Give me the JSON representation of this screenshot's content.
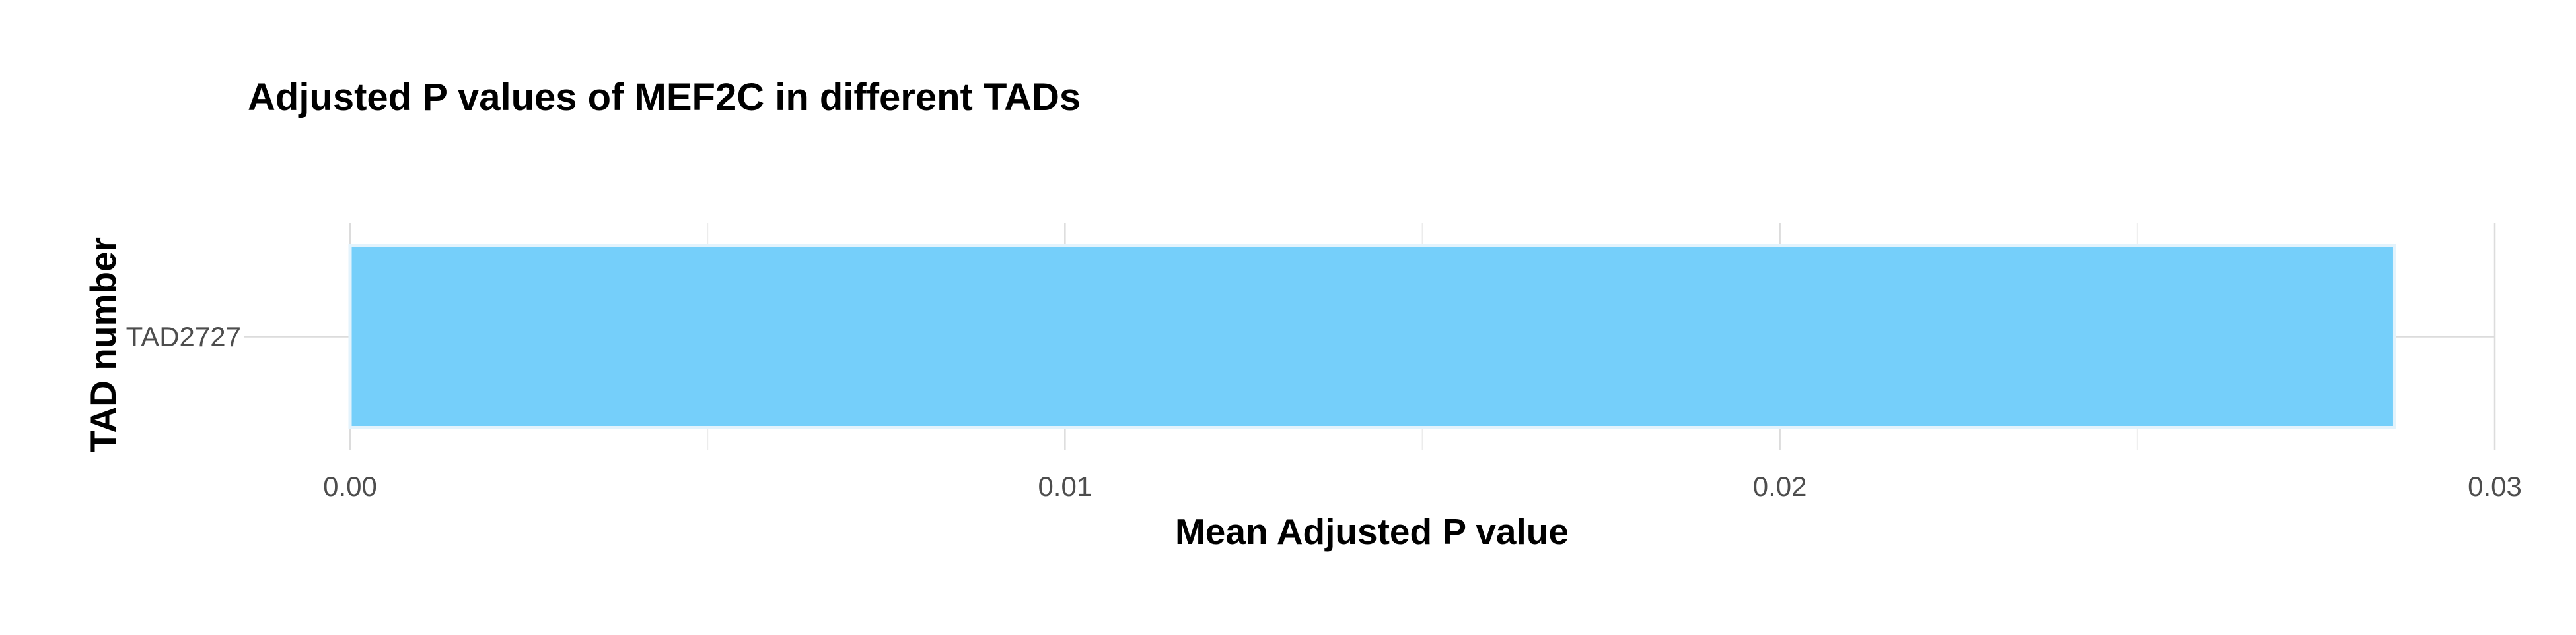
{
  "chart_data": {
    "type": "bar",
    "orientation": "horizontal",
    "title": "Adjusted P values of MEF2C in different TADs",
    "xlabel": "Mean Adjusted P value",
    "ylabel": "TAD number",
    "categories": [
      "TAD2727"
    ],
    "values": [
      0.0286
    ],
    "xlim": [
      0,
      0.03
    ],
    "xticks": [
      0.0,
      0.01,
      0.02,
      0.03
    ],
    "xtick_labels": [
      "0.00",
      "0.01",
      "0.02",
      "0.03"
    ],
    "grid": true,
    "legend": "none",
    "colors": {
      "bar_fill": "#75cffa",
      "bar_edge": "#e3f3fc",
      "grid_major": "#dcdcdc",
      "grid_minor": "#ececec",
      "title_text": "#000000",
      "tick_text": "#4d4d4d"
    }
  }
}
